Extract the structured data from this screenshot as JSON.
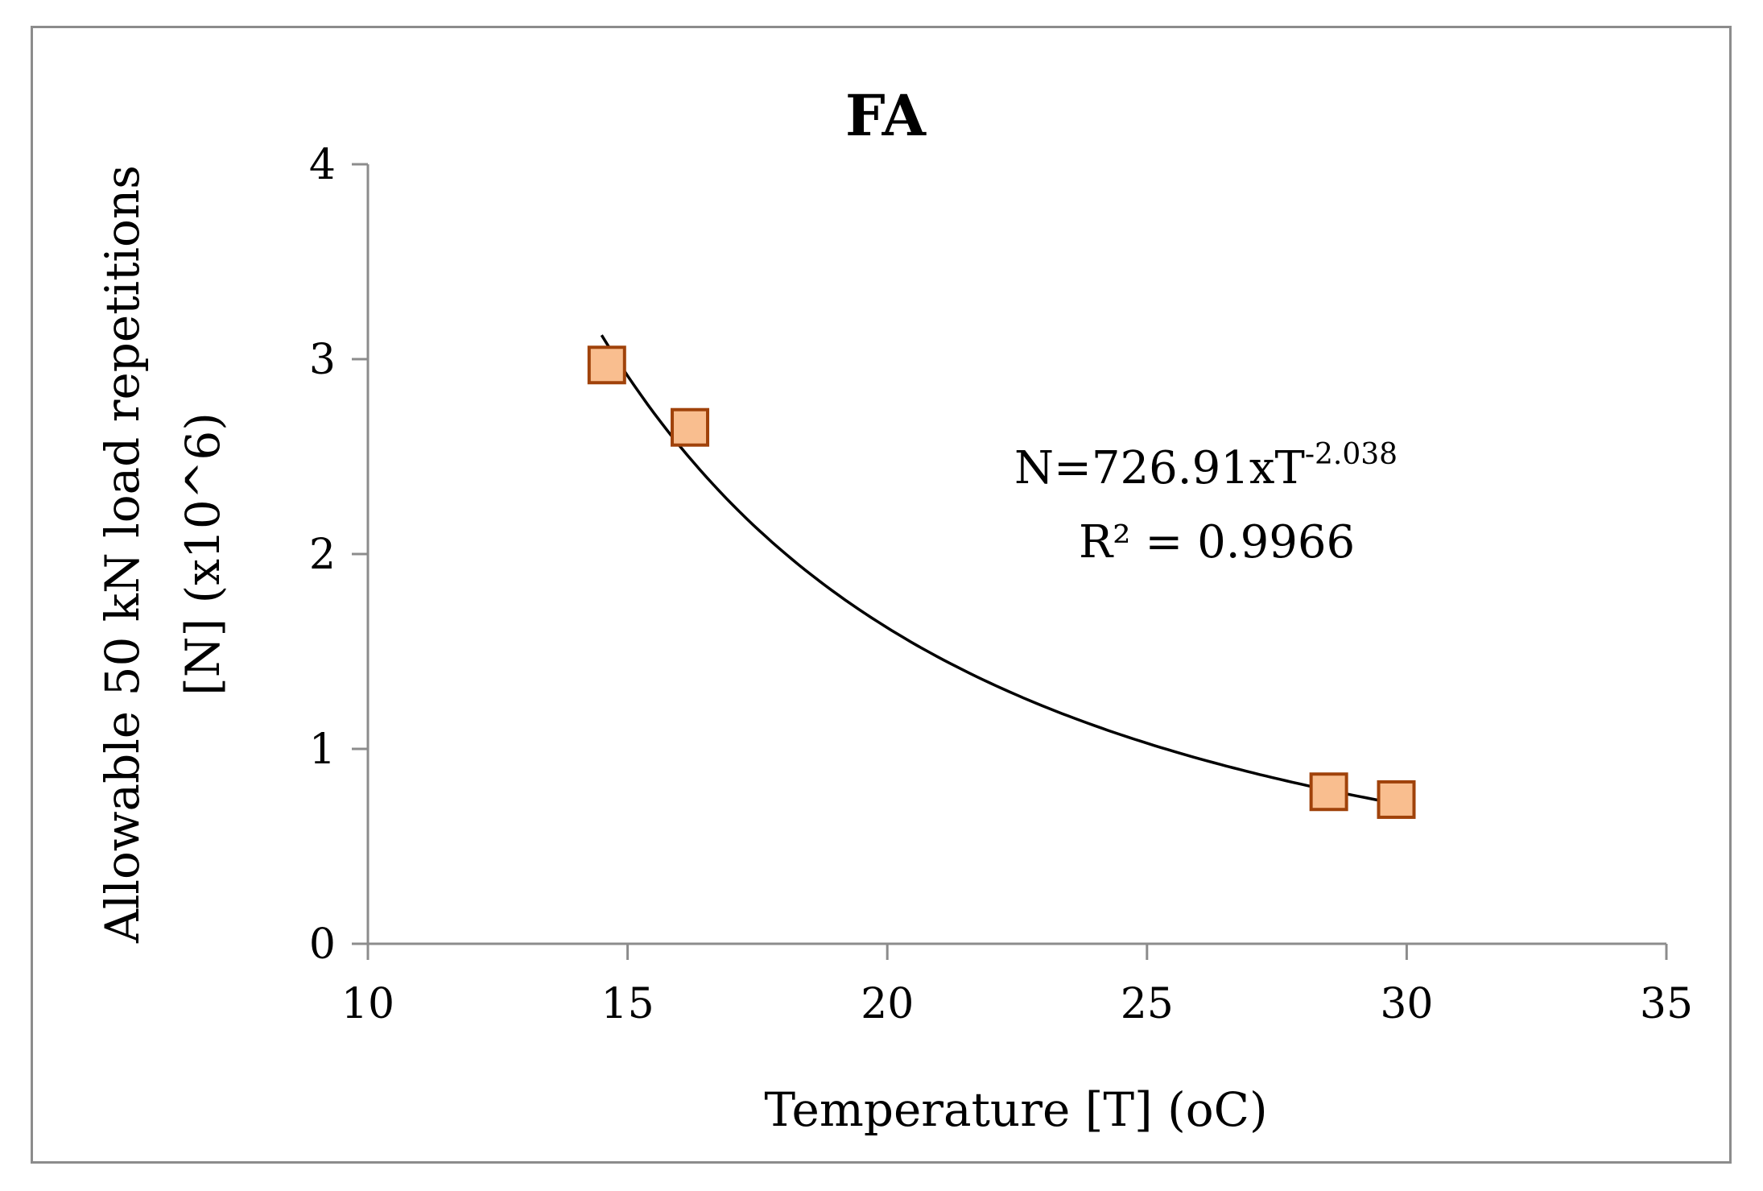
{
  "chart_data": {
    "type": "scatter",
    "title": "FA",
    "xlabel": "Temperature [T] (oC)",
    "ylabel_line1": "Allowable 50 kN load repetitions",
    "ylabel_line2": "[N] (x10^6)",
    "xlim": [
      10,
      35
    ],
    "ylim": [
      0,
      4
    ],
    "xticks": [
      10,
      15,
      20,
      25,
      30,
      35
    ],
    "yticks": [
      0,
      1,
      2,
      3,
      4
    ],
    "xtick_labels": [
      "10",
      "15",
      "20",
      "25",
      "30",
      "35"
    ],
    "ytick_labels": [
      "0",
      "1",
      "2",
      "3",
      "4"
    ],
    "series": [
      {
        "name": "FA",
        "x": [
          14.6,
          16.2,
          28.5,
          29.8
        ],
        "y": [
          2.97,
          2.65,
          0.78,
          0.74
        ],
        "marker": "square",
        "fill": "#f9be8f",
        "edge": "#a0420a"
      }
    ],
    "trendline": {
      "type": "power",
      "coefficient": 726.91,
      "exponent": -2.038,
      "x_range": [
        14.5,
        29.7
      ],
      "equation_base": "N=726.91xT",
      "equation_exponent": "-2.038",
      "r_squared_label": "R² = 0.9966"
    }
  }
}
